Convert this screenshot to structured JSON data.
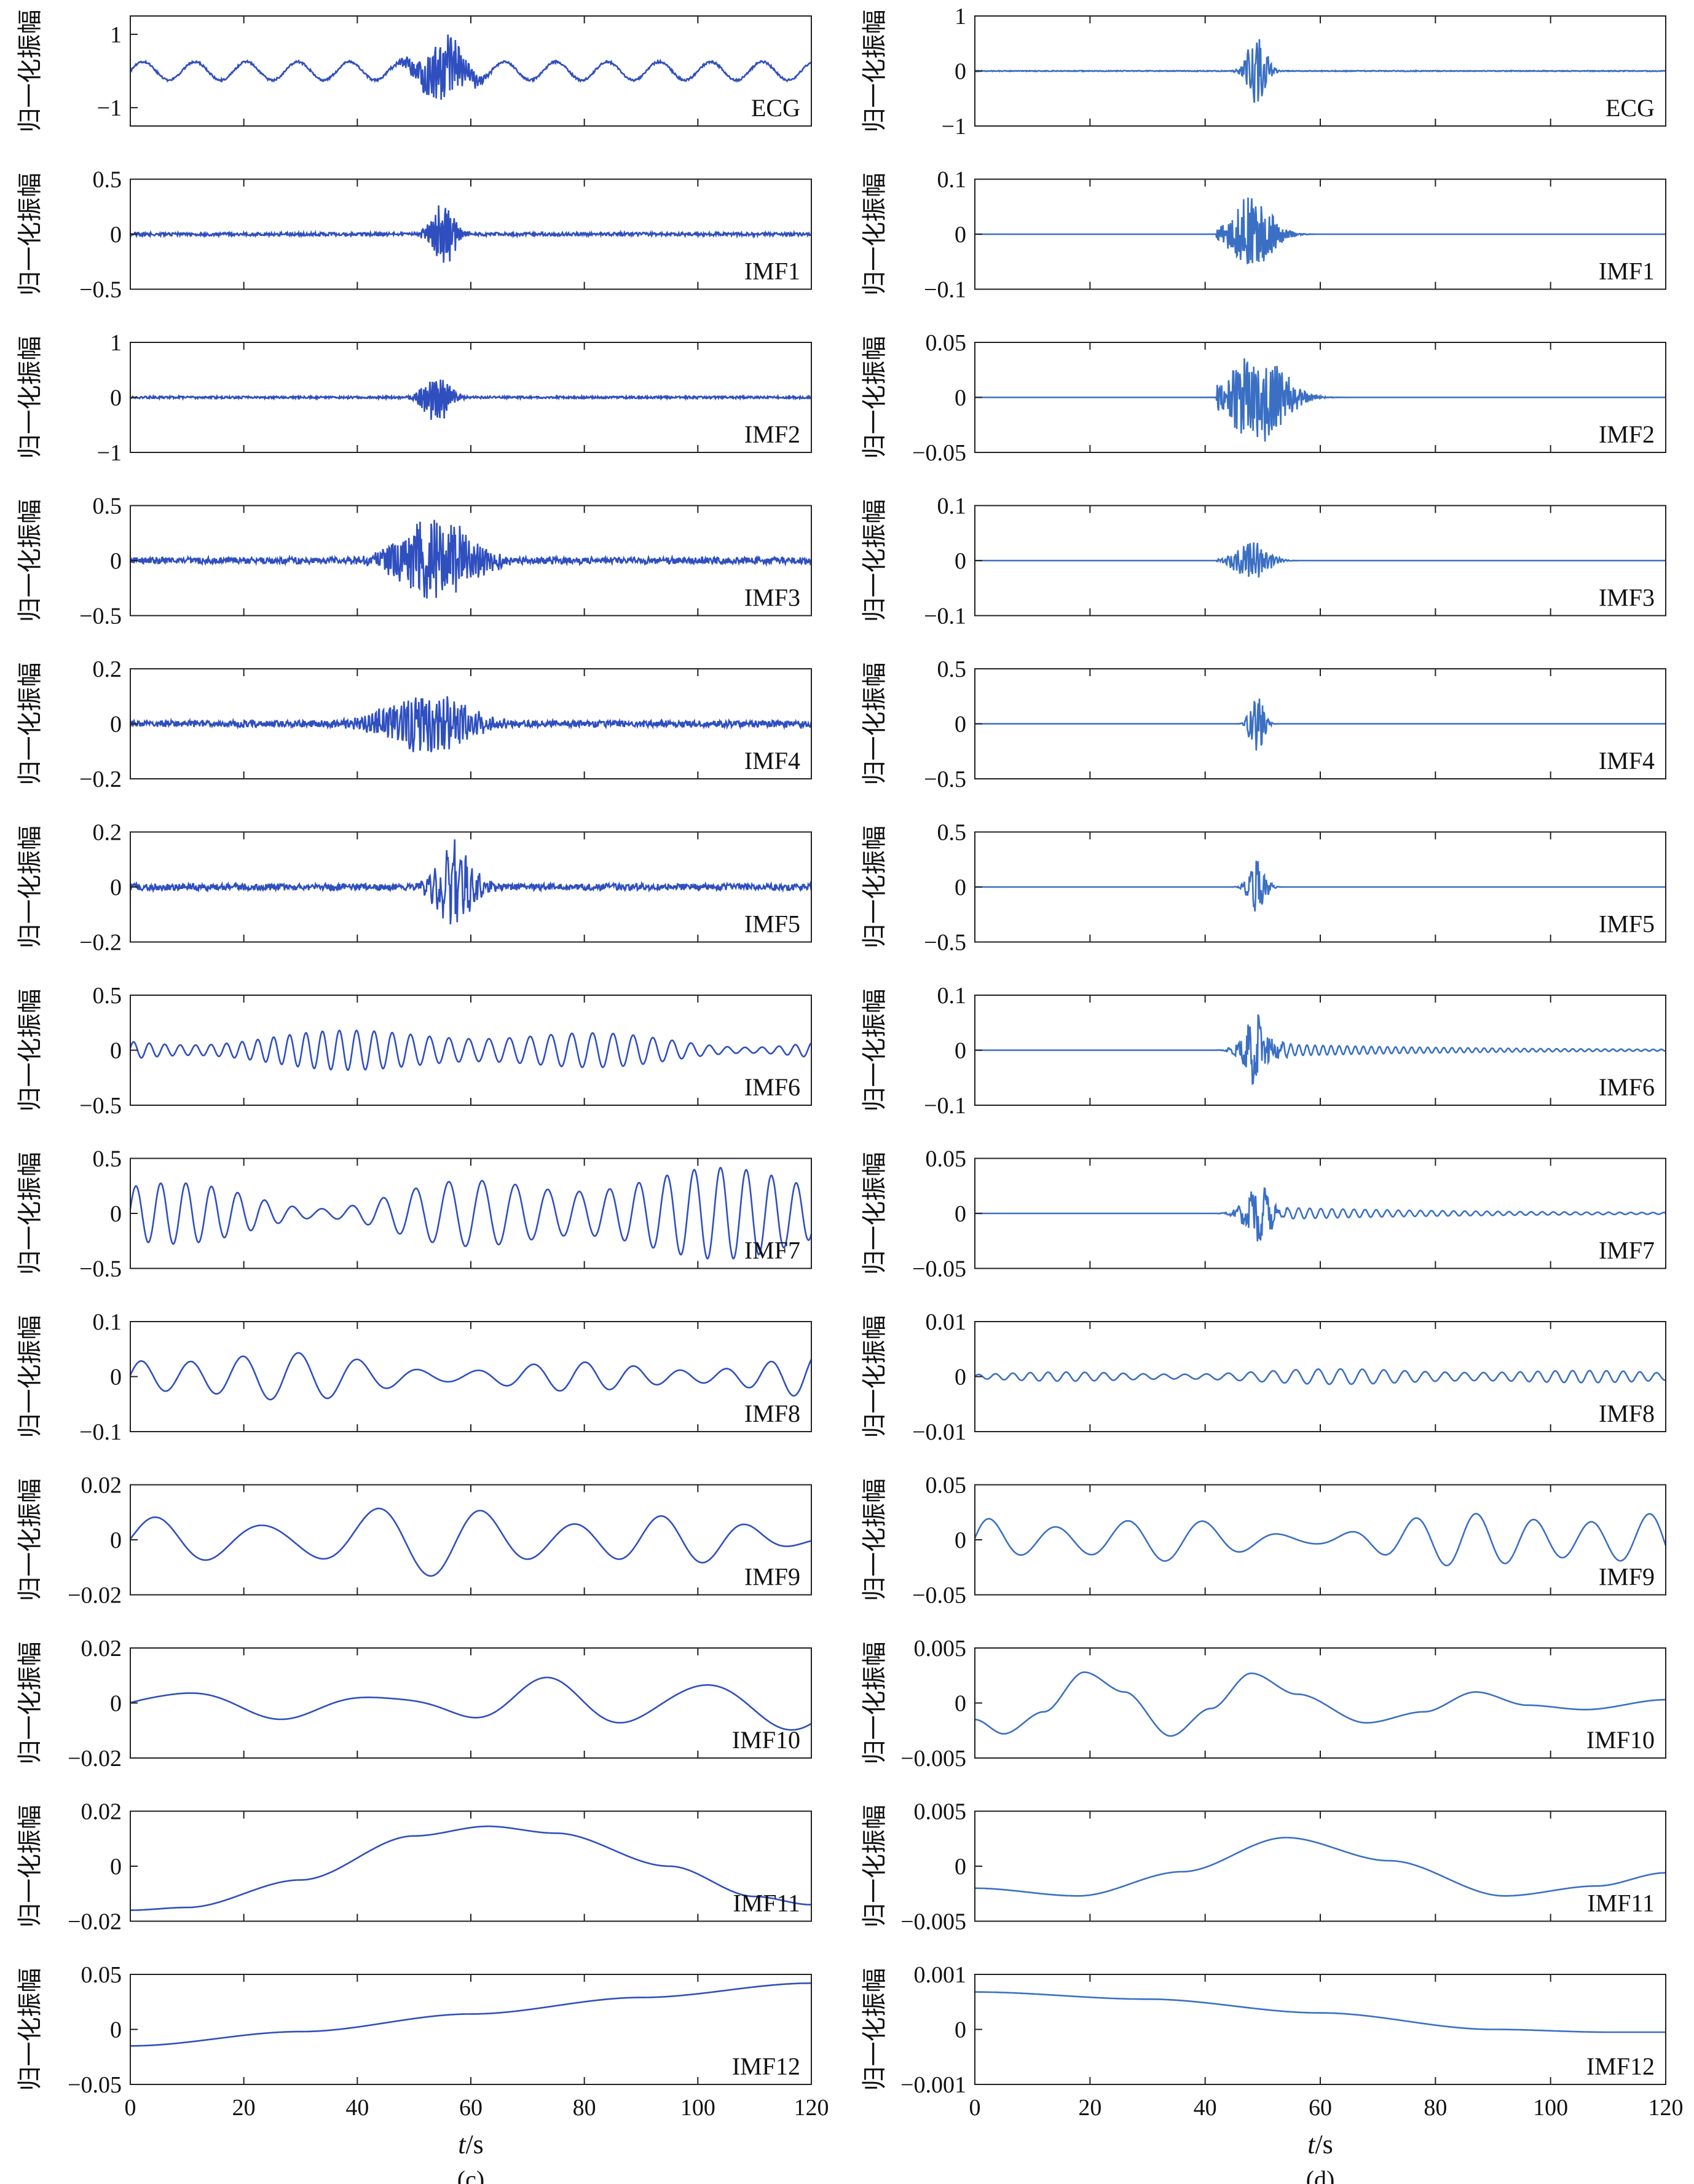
{
  "chart_data": [
    {
      "type": "line",
      "caption": "(c)",
      "xlabel_var": "t",
      "xlabel_unit": "/s",
      "ylabel": "归一化振幅",
      "xlim": [
        0,
        120
      ],
      "xticks": [
        "0",
        "20",
        "40",
        "60",
        "80",
        "100",
        "120"
      ],
      "series_color": "#2f4fbf",
      "panels": [
        {
          "name": "ECG",
          "ylim": [
            -1.5,
            1.5
          ],
          "yticks": [
            {
              "v": 1,
              "label": "1"
            },
            {
              "v": -1,
              "label": "−1"
            }
          ],
          "amp": 0.9,
          "burst_center": 55,
          "burst_width": 5,
          "carrier_hz": 2.2,
          "baseline_amp": 0.25,
          "baseline_hz": 0.11
        },
        {
          "name": "IMF1",
          "ylim": [
            -0.5,
            0.5
          ],
          "yticks": [
            {
              "v": 0.5,
              "label": "0.5"
            },
            {
              "v": 0,
              "label": "0"
            },
            {
              "v": -0.5,
              "label": "−0.5"
            }
          ],
          "amp": 0.33,
          "burst_center": 55,
          "burst_width": 2.5,
          "carrier_hz": 3.0,
          "noise": 0.015
        },
        {
          "name": "IMF2",
          "ylim": [
            -1,
            1
          ],
          "yticks": [
            {
              "v": 1,
              "label": "1"
            },
            {
              "v": 0,
              "label": "0"
            },
            {
              "v": -1,
              "label": "−1"
            }
          ],
          "amp": 0.5,
          "burst_center": 54,
          "burst_width": 2.8,
          "carrier_hz": 2.6,
          "noise": 0.02
        },
        {
          "name": "IMF3",
          "ylim": [
            -0.5,
            0.5
          ],
          "yticks": [
            {
              "v": 0.5,
              "label": "0.5"
            },
            {
              "v": 0,
              "label": "0"
            },
            {
              "v": -0.5,
              "label": "−0.5"
            }
          ],
          "amp": 0.42,
          "burst_center": 54,
          "burst_width": 8,
          "carrier_hz": 2.0,
          "noise": 0.03
        },
        {
          "name": "IMF4",
          "ylim": [
            -0.2,
            0.2
          ],
          "yticks": [
            {
              "v": 0.2,
              "label": "0.2"
            },
            {
              "v": 0,
              "label": "0"
            },
            {
              "v": -0.2,
              "label": "−0.2"
            }
          ],
          "amp": 0.12,
          "burst_center": 52,
          "burst_width": 9,
          "carrier_hz": 1.6,
          "noise": 0.012
        },
        {
          "name": "IMF5",
          "ylim": [
            -0.2,
            0.2
          ],
          "yticks": [
            {
              "v": 0.2,
              "label": "0.2"
            },
            {
              "v": 0,
              "label": "0"
            },
            {
              "v": -0.2,
              "label": "−0.2"
            }
          ],
          "amp": 0.17,
          "burst_center": 57,
          "burst_width": 4,
          "carrier_hz": 0.9,
          "noise": 0.012
        },
        {
          "name": "IMF6",
          "ylim": [
            -0.5,
            0.5
          ],
          "yticks": [
            {
              "v": 0.5,
              "label": "0.5"
            },
            {
              "v": 0,
              "label": "0"
            },
            {
              "v": -0.5,
              "label": "−0.5"
            }
          ],
          "amp": 0.16,
          "carrier_hz": 0.32,
          "modulated": true
        },
        {
          "name": "IMF7",
          "ylim": [
            -0.5,
            0.5
          ],
          "yticks": [
            {
              "v": 0.5,
              "label": "0.5"
            },
            {
              "v": 0,
              "label": "0"
            },
            {
              "v": -0.5,
              "label": "−0.5"
            }
          ],
          "amp": 0.35,
          "carrier_hz": 0.2,
          "modulated": true
        },
        {
          "name": "IMF8",
          "ylim": [
            -0.1,
            0.1
          ],
          "yticks": [
            {
              "v": 0.1,
              "label": "0.1"
            },
            {
              "v": 0,
              "label": "0"
            },
            {
              "v": -0.1,
              "label": "−0.1"
            }
          ],
          "amp": 0.04,
          "carrier_hz": 0.11,
          "modulated": true
        },
        {
          "name": "IMF9",
          "ylim": [
            -0.02,
            0.02
          ],
          "yticks": [
            {
              "v": 0.02,
              "label": "0.02"
            },
            {
              "v": 0,
              "label": "0"
            },
            {
              "v": -0.02,
              "label": "−0.02"
            }
          ],
          "amp": 0.011,
          "carrier_hz": 0.058,
          "modulated": true
        },
        {
          "name": "IMF10",
          "ylim": [
            -0.02,
            0.02
          ],
          "yticks": [
            {
              "v": 0.02,
              "label": "0.02"
            },
            {
              "v": 0,
              "label": "0"
            },
            {
              "v": -0.02,
              "label": "−0.02"
            }
          ],
          "amp": 0.009,
          "carrier_hz": 0.032,
          "modulated": true
        },
        {
          "name": "IMF11",
          "ylim": [
            -0.02,
            0.02
          ],
          "yticks": [
            {
              "v": 0.02,
              "label": "0.02"
            },
            {
              "v": 0,
              "label": "0"
            },
            {
              "v": -0.02,
              "label": "−0.02"
            }
          ],
          "curve": [
            [
              0,
              -0.016
            ],
            [
              10,
              -0.015
            ],
            [
              30,
              -0.005
            ],
            [
              50,
              0.011
            ],
            [
              63,
              0.0145
            ],
            [
              75,
              0.012
            ],
            [
              95,
              0.0
            ],
            [
              110,
              -0.011
            ],
            [
              120,
              -0.014
            ]
          ]
        },
        {
          "name": "IMF12",
          "ylim": [
            -0.05,
            0.05
          ],
          "yticks": [
            {
              "v": 0.05,
              "label": "0.05"
            },
            {
              "v": 0,
              "label": "0"
            },
            {
              "v": -0.05,
              "label": "−0.05"
            }
          ],
          "curve": [
            [
              0,
              -0.015
            ],
            [
              30,
              -0.002
            ],
            [
              60,
              0.014
            ],
            [
              90,
              0.029
            ],
            [
              120,
              0.042
            ]
          ]
        }
      ]
    },
    {
      "type": "line",
      "caption": "(d)",
      "xlabel_var": "t",
      "xlabel_unit": "/s",
      "ylabel": "归一化振幅",
      "xlim": [
        0,
        120
      ],
      "xticks": [
        "0",
        "20",
        "40",
        "60",
        "80",
        "100",
        "120"
      ],
      "series_color": "#3a6fc4",
      "panels": [
        {
          "name": "ECG",
          "ylim": [
            -1,
            1
          ],
          "yticks": [
            {
              "v": 1,
              "label": "1"
            },
            {
              "v": 0,
              "label": "0"
            },
            {
              "v": -1,
              "label": "−1"
            }
          ],
          "amp": 0.78,
          "burst_center": 49,
          "burst_width": 2.0,
          "carrier_hz": 1.5,
          "noise": 0.008
        },
        {
          "name": "IMF1",
          "ylim": [
            -0.1,
            0.1
          ],
          "yticks": [
            {
              "v": 0.1,
              "label": "0.1"
            },
            {
              "v": 0,
              "label": "0"
            },
            {
              "v": -0.1,
              "label": "−0.1"
            }
          ],
          "amp": 0.07,
          "burst_center": 48,
          "burst_width": 4.5,
          "carrier_hz": 3.0,
          "gate": [
            42,
            60
          ]
        },
        {
          "name": "IMF2",
          "ylim": [
            -0.05,
            0.05
          ],
          "yticks": [
            {
              "v": 0.05,
              "label": "0.05"
            },
            {
              "v": 0,
              "label": "0"
            },
            {
              "v": -0.05,
              "label": "−0.05"
            }
          ],
          "amp": 0.045,
          "burst_center": 49,
          "burst_width": 6,
          "carrier_hz": 2.5,
          "gate": [
            42,
            66
          ]
        },
        {
          "name": "IMF3",
          "ylim": [
            -0.1,
            0.1
          ],
          "yticks": [
            {
              "v": 0.1,
              "label": "0.1"
            },
            {
              "v": 0,
              "label": "0"
            },
            {
              "v": -0.1,
              "label": "−0.1"
            }
          ],
          "amp": 0.04,
          "burst_center": 48,
          "burst_width": 3.5,
          "carrier_hz": 1.8,
          "gate": [
            42,
            60
          ]
        },
        {
          "name": "IMF4",
          "ylim": [
            -0.5,
            0.5
          ],
          "yticks": [
            {
              "v": 0.5,
              "label": "0.5"
            },
            {
              "v": 0,
              "label": "0"
            },
            {
              "v": -0.5,
              "label": "−0.5"
            }
          ],
          "amp": 0.4,
          "burst_center": 49,
          "burst_width": 1.4,
          "carrier_hz": 1.3
        },
        {
          "name": "IMF5",
          "ylim": [
            -0.5,
            0.5
          ],
          "yticks": [
            {
              "v": 0.5,
              "label": "0.5"
            },
            {
              "v": 0,
              "label": "0"
            },
            {
              "v": -0.5,
              "label": "−0.5"
            }
          ],
          "amp": 0.27,
          "burst_center": 49,
          "burst_width": 1.8,
          "carrier_hz": 0.8
        },
        {
          "name": "IMF6",
          "ylim": [
            -0.1,
            0.1
          ],
          "yticks": [
            {
              "v": 0.1,
              "label": "0.1"
            },
            {
              "v": 0,
              "label": "0"
            },
            {
              "v": -0.1,
              "label": "−0.1"
            }
          ],
          "amp": 0.07,
          "burst_center": 49,
          "burst_width": 3,
          "carrier_hz": 0.55,
          "tail": 0.012
        },
        {
          "name": "IMF7",
          "ylim": [
            -0.05,
            0.05
          ],
          "yticks": [
            {
              "v": 0.05,
              "label": "0.05"
            },
            {
              "v": 0,
              "label": "0"
            },
            {
              "v": -0.05,
              "label": "−0.05"
            }
          ],
          "amp": 0.025,
          "burst_center": 49,
          "burst_width": 3,
          "carrier_hz": 0.4,
          "tail": 0.006
        },
        {
          "name": "IMF8",
          "ylim": [
            -0.01,
            0.01
          ],
          "yticks": [
            {
              "v": 0.01,
              "label": "0.01"
            },
            {
              "v": 0,
              "label": "0"
            },
            {
              "v": -0.01,
              "label": "−0.01"
            }
          ],
          "amp": 0.0012,
          "carrier_hz": 0.3,
          "modulated": true
        },
        {
          "name": "IMF9",
          "ylim": [
            -0.05,
            0.05
          ],
          "yticks": [
            {
              "v": 0.05,
              "label": "0.05"
            },
            {
              "v": 0,
              "label": "0"
            },
            {
              "v": -0.05,
              "label": "−0.05"
            }
          ],
          "amp": 0.026,
          "carrier_hz": 0.088,
          "modulated": true
        },
        {
          "name": "IMF10",
          "ylim": [
            -0.005,
            0.005
          ],
          "yticks": [
            {
              "v": 0.005,
              "label": "0.005"
            },
            {
              "v": 0,
              "label": "0"
            },
            {
              "v": -0.005,
              "label": "−0.005"
            }
          ],
          "curve": [
            [
              0,
              -0.0015
            ],
            [
              5,
              -0.0028
            ],
            [
              12,
              -0.0008
            ],
            [
              19,
              0.0028
            ],
            [
              26,
              0.001
            ],
            [
              34,
              -0.003
            ],
            [
              41,
              -0.0005
            ],
            [
              48,
              0.0027
            ],
            [
              56,
              0.0008
            ],
            [
              68,
              -0.0018
            ],
            [
              78,
              -0.0008
            ],
            [
              87,
              0.001
            ],
            [
              96,
              -0.0002
            ],
            [
              106,
              -0.0006
            ],
            [
              120,
              0.0003
            ]
          ]
        },
        {
          "name": "IMF11",
          "ylim": [
            -0.005,
            0.005
          ],
          "yticks": [
            {
              "v": 0.005,
              "label": "0.005"
            },
            {
              "v": 0,
              "label": "0"
            },
            {
              "v": -0.005,
              "label": "−0.005"
            }
          ],
          "curve": [
            [
              0,
              -0.002
            ],
            [
              18,
              -0.0027
            ],
            [
              36,
              -0.0005
            ],
            [
              54,
              0.0026
            ],
            [
              72,
              0.0005
            ],
            [
              92,
              -0.0027
            ],
            [
              108,
              -0.0018
            ],
            [
              120,
              -0.0006
            ]
          ]
        },
        {
          "name": "IMF12",
          "ylim": [
            -0.001,
            0.001
          ],
          "yticks": [
            {
              "v": 0.001,
              "label": "0.001"
            },
            {
              "v": 0,
              "label": "0"
            },
            {
              "v": -0.001,
              "label": "−0.001"
            }
          ],
          "curve": [
            [
              0,
              0.00068
            ],
            [
              30,
              0.00055
            ],
            [
              60,
              0.0003
            ],
            [
              90,
              0.0
            ],
            [
              110,
              -5e-05
            ],
            [
              120,
              -5e-05
            ]
          ]
        }
      ]
    }
  ]
}
